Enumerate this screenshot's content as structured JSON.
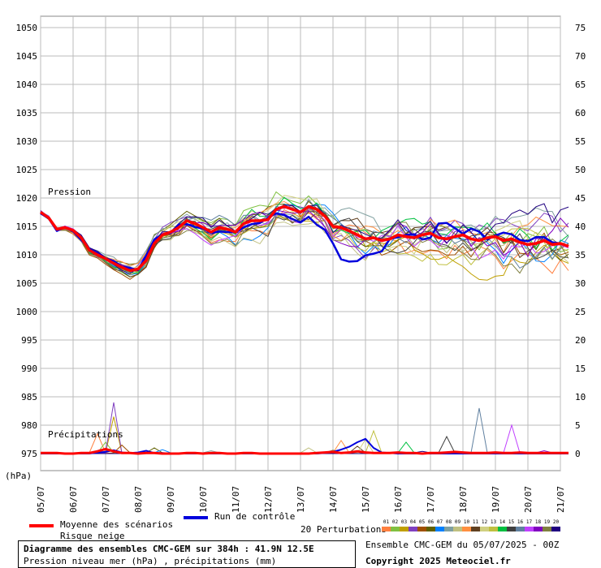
{
  "chart_data": {
    "type": "line",
    "left_axis": {
      "unit_label": "(hPa)",
      "ylim": [
        972,
        1052
      ],
      "ticks": [
        1050,
        1045,
        1040,
        1035,
        1030,
        1025,
        1020,
        1015,
        1010,
        1005,
        1000,
        995,
        990,
        985,
        980,
        975
      ]
    },
    "right_axis": {
      "unit": "mm",
      "ticks": [
        75,
        70,
        65,
        60,
        55,
        50,
        45,
        40,
        35,
        30,
        25,
        20,
        15,
        10,
        5,
        0
      ]
    },
    "x_axis": {
      "ticks": [
        "05/07",
        "06/07",
        "07/07",
        "08/07",
        "09/07",
        "10/07",
        "11/07",
        "12/07",
        "13/07",
        "14/07",
        "15/07",
        "16/07",
        "17/07",
        "18/07",
        "19/07",
        "20/07",
        "21/07"
      ],
      "step_hours": 6,
      "total_hours": 384
    },
    "grid": true,
    "annotations": {
      "pressure": "Pression",
      "precip": "Précipitations"
    },
    "pressure_mean": [
      1017.5,
      1016.5,
      1014.5,
      1014.8,
      1014.3,
      1013.0,
      1010.8,
      1010.0,
      1009.3,
      1008.5,
      1007.8,
      1007.2,
      1007.5,
      1009.0,
      1012.0,
      1013.5,
      1014.0,
      1014.8,
      1016.0,
      1015.5,
      1014.8,
      1014.0,
      1014.8,
      1014.5,
      1014.0,
      1015.5,
      1016.0,
      1016.0,
      1016.2,
      1018.0,
      1018.5,
      1018.0,
      1017.5,
      1018.5,
      1018.0,
      1016.8,
      1015.0,
      1014.8,
      1014.2,
      1013.5,
      1012.8,
      1013.0,
      1012.5,
      1012.8,
      1013.5,
      1013.2,
      1013.0,
      1013.5,
      1013.8,
      1013.0,
      1012.8,
      1013.2,
      1013.5,
      1012.8,
      1012.5,
      1013.0,
      1013.2,
      1012.5,
      1012.8,
      1012.2,
      1011.8,
      1012.0,
      1012.5,
      1011.8,
      1012.0,
      1011.5
    ],
    "pressure_control": [
      1017.3,
      1016.4,
      1014.2,
      1014.9,
      1014.1,
      1012.6,
      1011.0,
      1010.3,
      1009.4,
      1008.9,
      1007.9,
      1007.7,
      1007.3,
      1009.9,
      1012.7,
      1013.6,
      1013.8,
      1015.3,
      1015.4,
      1014.9,
      1014.6,
      1013.8,
      1014.1,
      1014.0,
      1014.0,
      1014.8,
      1015.4,
      1015.6,
      1016.5,
      1017.3,
      1017.0,
      1016.3,
      1015.7,
      1016.7,
      1015.3,
      1014.4,
      1012.0,
      1009.2,
      1008.8,
      1008.9,
      1009.9,
      1010.2,
      1010.6,
      1012.8,
      1013.1,
      1013.5,
      1013.6,
      1012.7,
      1013.0,
      1015.5,
      1015.6,
      1014.7,
      1013.7,
      1014.6,
      1014.1,
      1012.7,
      1013.4,
      1013.9,
      1013.6,
      1012.6,
      1012.4,
      1013.1,
      1013.1,
      1012.2,
      1012.0,
      1011.5
    ],
    "precip_mean": [
      0.1,
      0.1,
      0.1,
      0.0,
      0.0,
      0.1,
      0.1,
      0.4,
      0.8,
      0.4,
      0.1,
      0.1,
      0.0,
      0.1,
      0.1,
      0.0,
      0.0,
      0.0,
      0.1,
      0.1,
      0.0,
      0.1,
      0.1,
      0.0,
      0.0,
      0.1,
      0.1,
      0.0,
      0.0,
      0.0,
      0.0,
      0.0,
      0.0,
      0.0,
      0.1,
      0.2,
      0.3,
      0.1,
      0.2,
      0.4,
      0.2,
      0.1,
      0.1,
      0.1,
      0.2,
      0.1,
      0.1,
      0.0,
      0.1,
      0.1,
      0.2,
      0.3,
      0.2,
      0.1,
      0.1,
      0.1,
      0.2,
      0.1,
      0.1,
      0.2,
      0.1,
      0.1,
      0.1,
      0.1,
      0.1,
      0.1
    ],
    "precip_control": [
      0,
      0,
      0,
      0,
      0,
      0,
      0,
      0.2,
      0.3,
      0.6,
      0.2,
      0.1,
      0.2,
      0.5,
      0.1,
      0.1,
      0,
      0,
      0,
      0,
      0,
      0,
      0,
      0,
      0,
      0,
      0,
      0,
      0,
      0,
      0,
      0,
      0,
      0,
      0,
      0.1,
      0.3,
      0.7,
      1.2,
      2.0,
      2.6,
      1.0,
      0.2,
      0.1,
      0,
      0,
      0,
      0,
      0,
      0,
      0,
      0,
      0,
      0,
      0,
      0,
      0,
      0,
      0,
      0,
      0,
      0,
      0,
      0,
      0,
      0
    ],
    "precip_peaks": [
      {
        "member": 1,
        "x_step": 7,
        "mm": 3.5
      },
      {
        "member": 2,
        "x_step": 8,
        "mm": 2.0
      },
      {
        "member": 3,
        "x_step": 9,
        "mm": 6.5
      },
      {
        "member": 4,
        "x_step": 9,
        "mm": 9.0
      },
      {
        "member": 5,
        "x_step": 10,
        "mm": 1.5
      },
      {
        "member": 6,
        "x_step": 14,
        "mm": 1.0
      },
      {
        "member": 7,
        "x_step": 15,
        "mm": 0.7
      },
      {
        "member": 8,
        "x_step": 21,
        "mm": 0.5
      },
      {
        "member": 9,
        "x_step": 33,
        "mm": 1.0
      },
      {
        "member": 10,
        "x_step": 37,
        "mm": 2.3
      },
      {
        "member": 11,
        "x_step": 39,
        "mm": 1.3
      },
      {
        "member": 12,
        "x_step": 40,
        "mm": 2.5
      },
      {
        "member": 13,
        "x_step": 41,
        "mm": 4.0
      },
      {
        "member": 14,
        "x_step": 45,
        "mm": 2.0
      },
      {
        "member": 15,
        "x_step": 50,
        "mm": 3.0
      },
      {
        "member": 16,
        "x_step": 54,
        "mm": 8.0
      },
      {
        "member": 17,
        "x_step": 58,
        "mm": 5.0
      },
      {
        "member": 18,
        "x_step": 62,
        "mm": 0.5
      },
      {
        "member": 19,
        "x_step": 36,
        "mm": 0.6
      },
      {
        "member": 20,
        "x_step": 47,
        "mm": 0.4
      }
    ],
    "series": [
      {
        "name": "Moyenne des scénarios",
        "color": "#ff0000"
      },
      {
        "name": "Run de contrôle",
        "color": "#0000dd"
      }
    ],
    "perturbation_colors": [
      "#ff8040",
      "#80c040",
      "#c0a000",
      "#8040c0",
      "#a05000",
      "#606000",
      "#0080ff",
      "#80a0a0",
      "#c0c080",
      "#ff9040",
      "#604020",
      "#d0d080",
      "#c0c040",
      "#00c040",
      "#404040",
      "#6080a0",
      "#c040ff",
      "#8000c0",
      "#808040",
      "#200080"
    ]
  },
  "legend": {
    "mean_label": "Moyenne des scénarios",
    "snow_label": "Risque neige",
    "control_label": "Run de contrôle",
    "perturbations_label": "20 Perturbations",
    "perturbation_numbers": [
      "01",
      "02",
      "03",
      "04",
      "05",
      "06",
      "07",
      "08",
      "09",
      "10",
      "11",
      "12",
      "13",
      "14",
      "15",
      "16",
      "17",
      "18",
      "19",
      "20"
    ],
    "mean_color": "#ff0000",
    "control_color": "#0000dd"
  },
  "footer": {
    "title": "Diagramme des ensembles CMC-GEM sur 384h : 41.9N 12.5E",
    "subtitle": "Pression niveau mer (hPa) , précipitations (mm)",
    "run_info": "Ensemble CMC-GEM du 05/07/2025 - 00Z",
    "copyright": "Copyright 2025 Meteociel.fr"
  }
}
